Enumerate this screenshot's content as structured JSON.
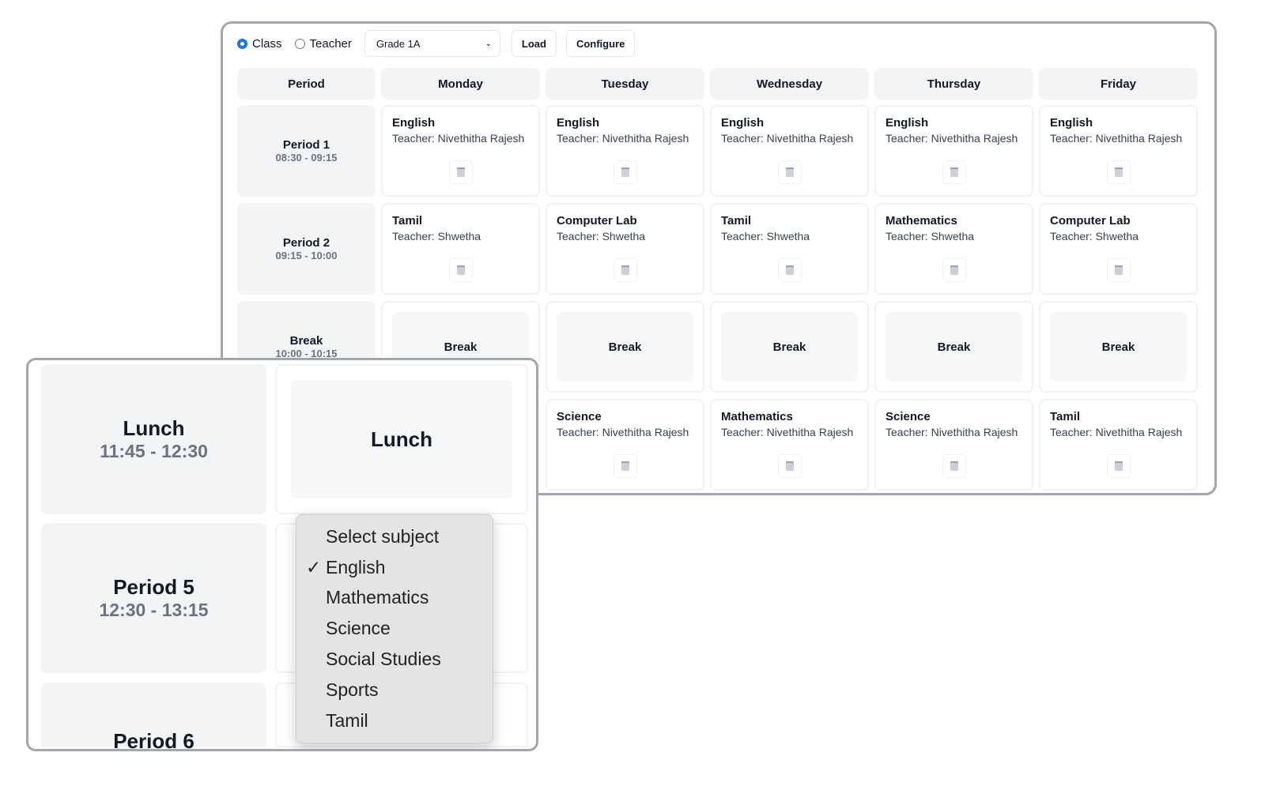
{
  "toolbar": {
    "mode_options": [
      {
        "label": "Class",
        "selected": true
      },
      {
        "label": "Teacher",
        "selected": false
      }
    ],
    "class_select": "Grade 1A",
    "load": "Load",
    "configure": "Configure"
  },
  "headers": [
    "Period",
    "Monday",
    "Tuesday",
    "Wednesday",
    "Thursday",
    "Friday"
  ],
  "rows": [
    {
      "period": "Period 1",
      "time": "08:30 - 09:15",
      "slots": [
        {
          "subject": "English",
          "teacher": "Teacher: Nivethitha Rajesh"
        },
        {
          "subject": "English",
          "teacher": "Teacher: Nivethitha Rajesh"
        },
        {
          "subject": "English",
          "teacher": "Teacher: Nivethitha Rajesh"
        },
        {
          "subject": "English",
          "teacher": "Teacher: Nivethitha Rajesh"
        },
        {
          "subject": "English",
          "teacher": "Teacher: Nivethitha Rajesh"
        }
      ]
    },
    {
      "period": "Period 2",
      "time": "09:15 - 10:00",
      "slots": [
        {
          "subject": "Tamil",
          "teacher": "Teacher: Shwetha"
        },
        {
          "subject": "Computer Lab",
          "teacher": "Teacher: Shwetha"
        },
        {
          "subject": "Tamil",
          "teacher": "Teacher: Shwetha"
        },
        {
          "subject": "Mathematics",
          "teacher": "Teacher: Shwetha"
        },
        {
          "subject": "Computer Lab",
          "teacher": "Teacher: Shwetha"
        }
      ]
    },
    {
      "period": "Break",
      "time": "10:00 - 10:15",
      "break_label": "Break"
    },
    {
      "slots": [
        null,
        {
          "subject": "Science",
          "teacher": "Teacher: Nivethitha Rajesh"
        },
        {
          "subject": "Mathematics",
          "teacher": "Teacher: Nivethitha Rajesh"
        },
        {
          "subject": "Science",
          "teacher": "Teacher: Nivethitha Rajesh"
        },
        {
          "subject": "Tamil",
          "teacher": "Teacher: Nivethitha Rajesh"
        }
      ]
    }
  ],
  "inset": {
    "lunch": {
      "period": "Lunch",
      "time": "11:45 - 12:30",
      "label": "Lunch"
    },
    "period5": {
      "period": "Period 5",
      "time": "12:30 - 13:15"
    },
    "period6": {
      "period": "Period 6"
    },
    "dropdown": {
      "options": [
        "Select subject",
        "English",
        "Mathematics",
        "Science",
        "Social Studies",
        "Sports",
        "Tamil"
      ],
      "selected": "English"
    }
  }
}
